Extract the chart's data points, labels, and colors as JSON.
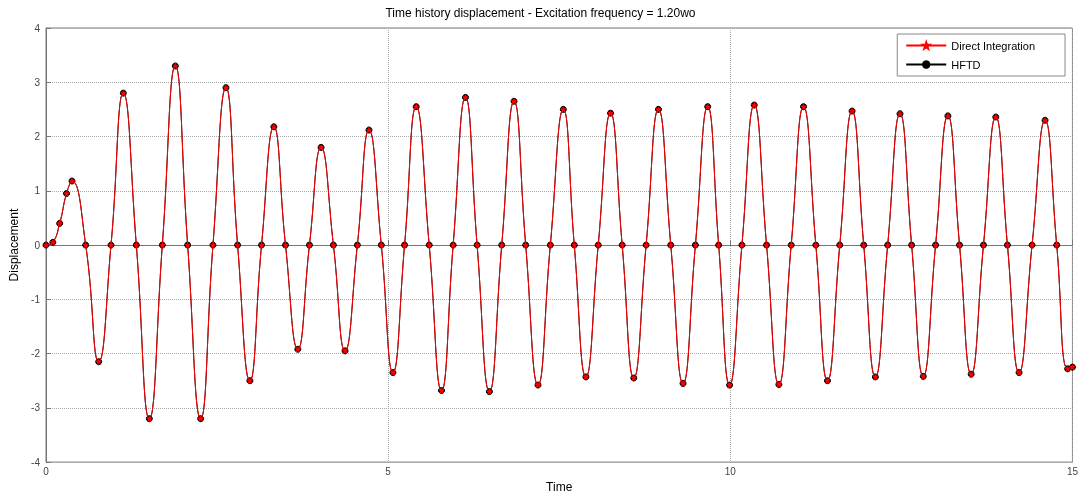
{
  "chart_data": {
    "type": "line",
    "title": "Time history displacement - Excitation frequency = 1.20wo",
    "xlabel": "Time",
    "ylabel": "Displacement",
    "x": [
      0,
      0.1,
      0.2,
      0.3,
      0.38,
      0.58,
      0.77,
      0.95,
      1.13,
      1.32,
      1.51,
      1.7,
      1.89,
      2.07,
      2.26,
      2.44,
      2.63,
      2.8,
      2.98,
      3.15,
      3.33,
      3.5,
      3.68,
      3.85,
      4.02,
      4.2,
      4.37,
      4.55,
      4.72,
      4.9,
      5.07,
      5.24,
      5.41,
      5.6,
      5.78,
      5.95,
      6.13,
      6.3,
      6.48,
      6.66,
      6.84,
      7.01,
      7.19,
      7.37,
      7.56,
      7.72,
      7.89,
      8.07,
      8.25,
      8.42,
      8.59,
      8.77,
      8.95,
      9.13,
      9.31,
      9.49,
      9.67,
      9.83,
      9.99,
      10.17,
      10.35,
      10.53,
      10.71,
      10.89,
      11.07,
      11.25,
      11.42,
      11.6,
      11.78,
      11.95,
      12.12,
      12.3,
      12.48,
      12.65,
      12.82,
      13.0,
      13.18,
      13.35,
      13.52,
      13.7,
      13.88,
      14.05,
      14.22,
      14.41,
      14.6,
      14.77,
      14.93,
      15
    ],
    "series": [
      {
        "name": "Direct Integration",
        "color": "#ff0000",
        "marker": "star",
        "values": [
          0,
          0.05,
          0.4,
          0.95,
          1.18,
          0,
          -2.15,
          0,
          2.8,
          0,
          -3.2,
          0,
          3.3,
          0,
          -3.2,
          0,
          2.9,
          0,
          -2.5,
          0,
          2.18,
          0,
          -1.92,
          0,
          1.8,
          0,
          -1.95,
          0,
          2.12,
          0,
          -2.35,
          0,
          2.55,
          0,
          -2.68,
          0,
          2.72,
          0,
          -2.7,
          0,
          2.65,
          0,
          -2.58,
          0,
          2.5,
          0,
          -2.43,
          0,
          2.43,
          0,
          -2.45,
          0,
          2.5,
          0,
          -2.55,
          0,
          2.55,
          0,
          -2.58,
          0,
          2.58,
          0,
          -2.57,
          0,
          2.55,
          0,
          -2.5,
          0,
          2.47,
          0,
          -2.43,
          0,
          2.42,
          0,
          -2.42,
          0,
          2.38,
          0,
          -2.38,
          0,
          2.36,
          0,
          -2.35,
          0,
          2.3,
          0,
          -2.28,
          -2.25
        ]
      },
      {
        "name": "HFTD",
        "color": "#000000",
        "marker": "circle",
        "values": [
          0,
          0.05,
          0.4,
          0.95,
          1.18,
          0,
          -2.15,
          0,
          2.8,
          0,
          -3.2,
          0,
          3.3,
          0,
          -3.2,
          0,
          2.9,
          0,
          -2.5,
          0,
          2.18,
          0,
          -1.92,
          0,
          1.8,
          0,
          -1.95,
          0,
          2.12,
          0,
          -2.35,
          0,
          2.55,
          0,
          -2.68,
          0,
          2.72,
          0,
          -2.7,
          0,
          2.65,
          0,
          -2.58,
          0,
          2.5,
          0,
          -2.43,
          0,
          2.43,
          0,
          -2.45,
          0,
          2.5,
          0,
          -2.55,
          0,
          2.55,
          0,
          -2.58,
          0,
          2.58,
          0,
          -2.57,
          0,
          2.55,
          0,
          -2.5,
          0,
          2.47,
          0,
          -2.43,
          0,
          2.42,
          0,
          -2.42,
          0,
          2.38,
          0,
          -2.38,
          0,
          2.36,
          0,
          -2.35,
          0,
          2.3,
          0,
          -2.28,
          -2.25
        ]
      }
    ],
    "xlim": [
      0,
      15
    ],
    "xticks": [
      0,
      5,
      10,
      15
    ],
    "ylim": [
      -4,
      4
    ],
    "yticks": [
      -4,
      -3,
      -2,
      -1,
      0,
      1,
      2,
      3,
      4
    ],
    "grid": true,
    "legend": "top right",
    "line_style": "solid"
  }
}
